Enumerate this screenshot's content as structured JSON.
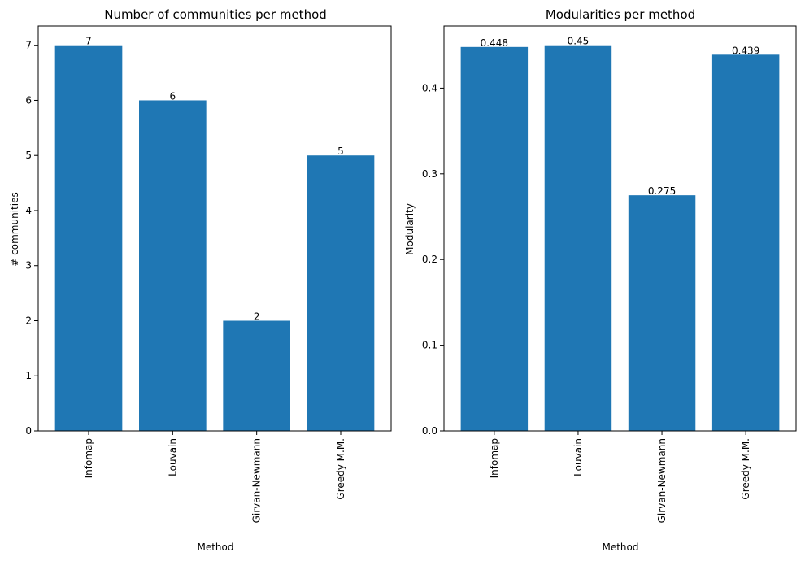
{
  "colors": {
    "bar": "#1f77b4",
    "axis": "#000000",
    "background": "#ffffff"
  },
  "chart_data": [
    {
      "type": "bar",
      "title": "Number of communities per method",
      "xlabel": "Method",
      "ylabel": "# communities",
      "categories": [
        "Infomap",
        "Louvain",
        "Girvan-Newmann",
        "Greedy M.M."
      ],
      "values": [
        7,
        6,
        2,
        5
      ],
      "data_labels": [
        "7",
        "6",
        "2",
        "5"
      ],
      "ylim": [
        0,
        7.35
      ],
      "yticks": [
        0,
        1,
        2,
        3,
        4,
        5,
        6,
        7
      ],
      "ytick_labels": [
        "0",
        "1",
        "2",
        "3",
        "4",
        "5",
        "6",
        "7"
      ],
      "grid": false,
      "x_tick_rotation": "vertical"
    },
    {
      "type": "bar",
      "title": "Modularities per method",
      "xlabel": "Method",
      "ylabel": "Modularity",
      "categories": [
        "Infomap",
        "Louvain",
        "Girvan-Newmann",
        "Greedy M.M."
      ],
      "values": [
        0.448,
        0.45,
        0.275,
        0.439
      ],
      "data_labels": [
        "0.448",
        "0.45",
        "0.275",
        "0.439"
      ],
      "ylim": [
        0,
        0.4725
      ],
      "yticks": [
        0,
        0.1,
        0.2,
        0.3,
        0.4
      ],
      "ytick_labels": [
        "0.0",
        "0.1",
        "0.2",
        "0.3",
        "0.4"
      ],
      "grid": false,
      "x_tick_rotation": "vertical"
    }
  ]
}
